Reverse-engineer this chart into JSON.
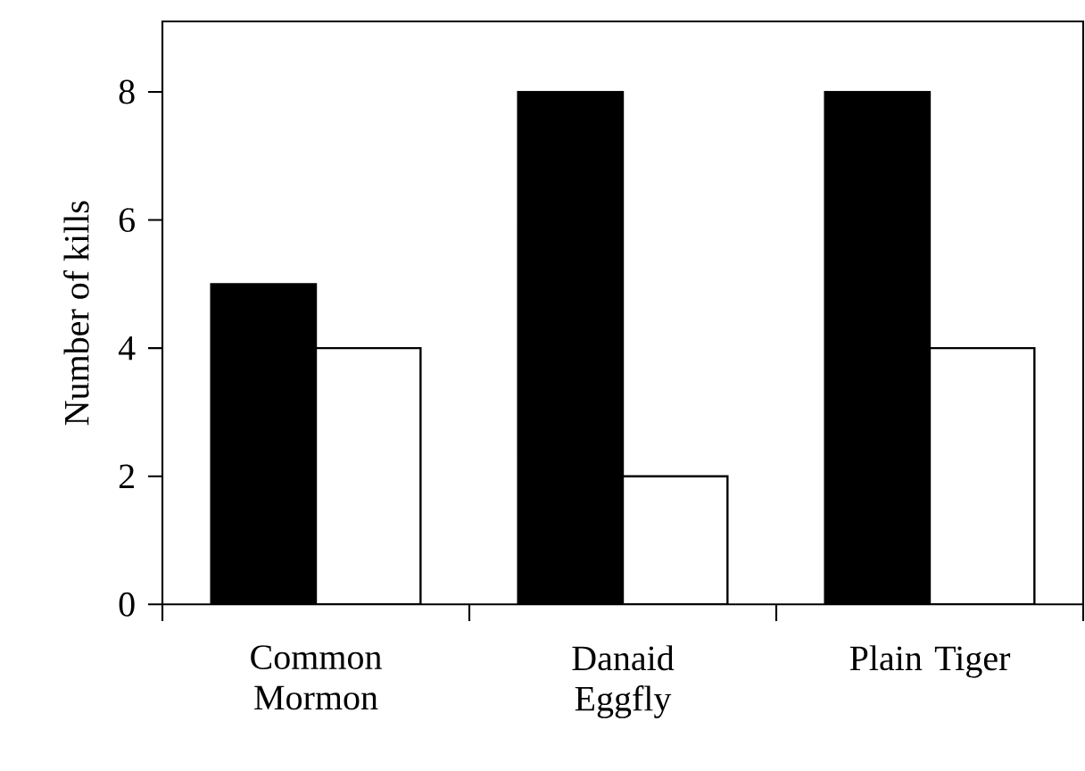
{
  "chart_data": {
    "type": "bar",
    "ylabel": "Number of kills",
    "categories": [
      "Common Mormon",
      "Danaid Eggfly",
      "Plain Tiger"
    ],
    "series": [
      {
        "color": "#000000",
        "values": [
          5,
          8,
          8
        ]
      },
      {
        "color": "#ffffff",
        "values": [
          4,
          2,
          4
        ]
      }
    ],
    "ylim": [
      0,
      9.1
    ],
    "yticks": [
      0,
      2,
      4,
      6,
      8
    ]
  }
}
